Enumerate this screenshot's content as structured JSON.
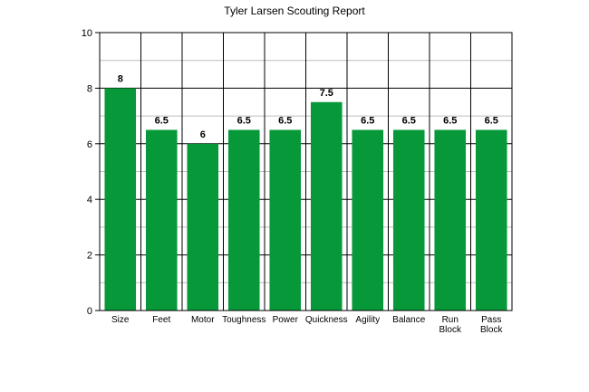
{
  "chart_data": {
    "type": "bar",
    "title": "Tyler Larsen Scouting Report",
    "categories": [
      [
        "Size"
      ],
      [
        "Feet"
      ],
      [
        "Motor"
      ],
      [
        "Toughness"
      ],
      [
        "Power"
      ],
      [
        "Quickness"
      ],
      [
        "Agility"
      ],
      [
        "Balance"
      ],
      [
        "Run",
        "Block"
      ],
      [
        "Pass",
        "Block"
      ]
    ],
    "values": [
      8,
      6.5,
      6,
      6.5,
      6.5,
      7.5,
      6.5,
      6.5,
      6.5,
      6.5
    ],
    "value_labels": [
      "8",
      "6.5",
      "6",
      "6.5",
      "6.5",
      "7.5",
      "6.5",
      "6.5",
      "6.5",
      "6.5"
    ],
    "y_ticks": [
      "0",
      "2",
      "4",
      "6",
      "8",
      "10"
    ],
    "ylim": [
      0,
      10
    ],
    "minor_grid": true,
    "grid": true,
    "bar_color": "#079939"
  }
}
